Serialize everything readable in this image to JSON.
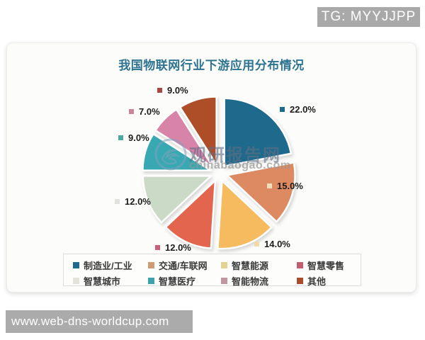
{
  "page": {
    "tg_badge": "TG: MYYJJPP",
    "bottom_bar_url": "www.web-dns-worldcup.com"
  },
  "watermark": {
    "title": "观研报告网",
    "domain": "chinabaogao.com"
  },
  "chart_data": {
    "type": "pie",
    "title": "我国物联网行业下游应用分布情况",
    "start_angle_deg": 0,
    "direction": "clockwise",
    "exploded": true,
    "legend_position": "bottom",
    "value_label_format": "{value}%",
    "series": [
      {
        "label": "制造业/工业",
        "value": 22.0,
        "color": "#1e6a8d",
        "legend_color": "#1e6a8d",
        "label_marker_color": "#1e6a8d"
      },
      {
        "label": "交通/车联网",
        "value": 15.0,
        "color": "#dd8a63",
        "legend_color": "#ce9a74",
        "label_marker_color": "#efdfbc"
      },
      {
        "label": "智慧能源",
        "value": 14.0,
        "color": "#f6bb5e",
        "legend_color": "#e3d291",
        "label_marker_color": "#f2dca4"
      },
      {
        "label": "智慧零售",
        "value": 12.0,
        "color": "#e3654e",
        "legend_color": "#c05f72",
        "label_marker_color": "#c9607a"
      },
      {
        "label": "智慧城市",
        "value": 12.0,
        "color": "#cbdac6",
        "legend_color": "#e3e3dc",
        "label_marker_color": "#e2e2dc"
      },
      {
        "label": "智慧医疗",
        "value": 9.0,
        "color": "#38a9b2",
        "legend_color": "#3ba3ac",
        "label_marker_color": "#4ba89c"
      },
      {
        "label": "智能物流",
        "value": 7.0,
        "color": "#d884a8",
        "legend_color": "#c295a0",
        "label_marker_color": "#cc8396"
      },
      {
        "label": "其他",
        "value": 9.0,
        "color": "#ae4e28",
        "legend_color": "#a84c2b",
        "label_marker_color": "#a84746"
      }
    ]
  }
}
